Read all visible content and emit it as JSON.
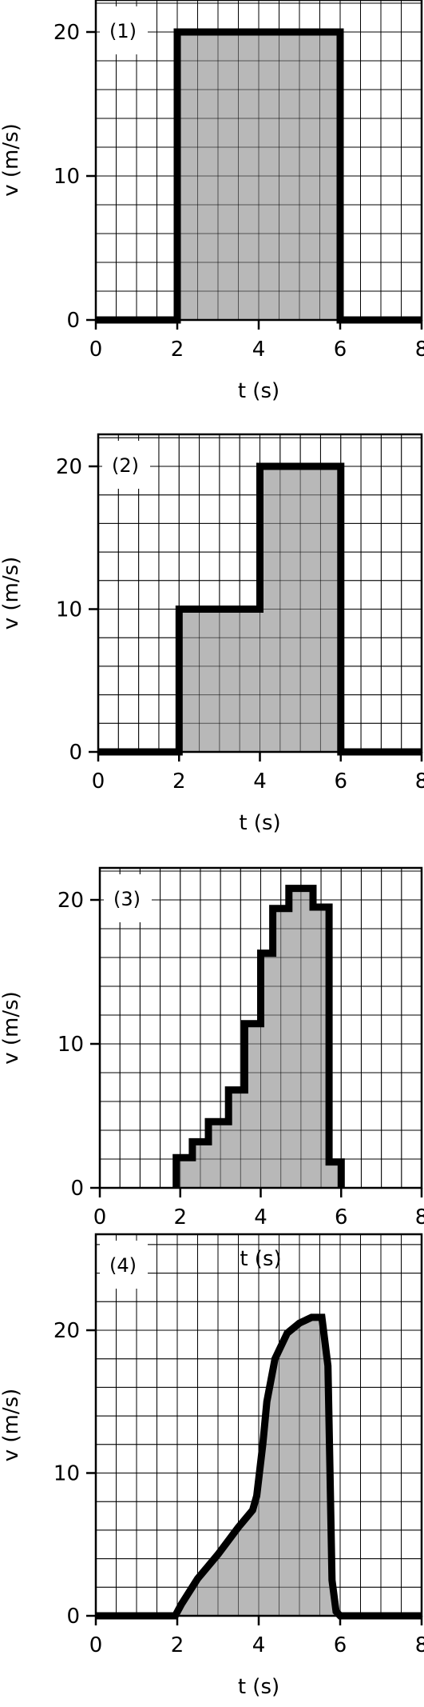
{
  "colors": {
    "fill": "#b8b8b8",
    "curve": "#000000",
    "grid": "#000000",
    "background": "#ffffff"
  },
  "chart_data": [
    {
      "type": "area",
      "panel_label": "(1)",
      "xlabel": "t (s)",
      "ylabel": "v (m/s)",
      "xlim": [
        0,
        8
      ],
      "ylim": [
        0,
        20
      ],
      "xticks": [
        0,
        2,
        4,
        6,
        8
      ],
      "yticks": [
        0,
        10,
        20
      ],
      "grid": true,
      "x": [
        0,
        2,
        2,
        6,
        6,
        8
      ],
      "y": [
        0,
        0,
        20,
        20,
        0,
        0
      ]
    },
    {
      "type": "area",
      "panel_label": "(2)",
      "xlabel": "t (s)",
      "ylabel": "v (m/s)",
      "xlim": [
        0,
        8
      ],
      "ylim": [
        0,
        20
      ],
      "xticks": [
        0,
        2,
        4,
        6,
        8
      ],
      "yticks": [
        0,
        10,
        20
      ],
      "grid": true,
      "x": [
        0,
        2,
        2,
        4,
        4,
        6,
        6,
        8
      ],
      "y": [
        0,
        0,
        10,
        10,
        20,
        20,
        0,
        0
      ]
    },
    {
      "type": "area",
      "panel_label": "(3)",
      "xlabel": "t (s)",
      "ylabel": "v (m/s)",
      "xlim": [
        0,
        8
      ],
      "ylim": [
        0,
        20
      ],
      "xticks": [
        0,
        2,
        4,
        6,
        8
      ],
      "yticks": [
        0,
        10,
        20
      ],
      "grid": true,
      "x": [
        1.9,
        1.9,
        2.3,
        2.3,
        2.7,
        2.7,
        3.2,
        3.2,
        3.6,
        3.6,
        4.0,
        4.0,
        4.3,
        4.3,
        4.7,
        4.7,
        5.3,
        5.3,
        5.7,
        5.7,
        6.0,
        6.0
      ],
      "y": [
        0,
        2.1,
        2.1,
        3.2,
        3.2,
        4.6,
        4.6,
        6.8,
        6.8,
        11.4,
        11.4,
        16.3,
        16.3,
        19.4,
        19.4,
        20.8,
        20.8,
        19.5,
        19.5,
        1.8,
        1.8,
        0
      ]
    },
    {
      "type": "area",
      "panel_label": "(4)",
      "xlabel": "t (s)",
      "ylabel": "v (m/s)",
      "xlim": [
        0,
        8
      ],
      "ylim": [
        0,
        20
      ],
      "xticks": [
        0,
        2,
        4,
        6,
        8
      ],
      "yticks": [
        0,
        10,
        20
      ],
      "grid": true,
      "x": [
        0,
        1.95,
        2.1,
        2.5,
        3.0,
        3.5,
        3.85,
        3.95,
        4.1,
        4.2,
        4.4,
        4.7,
        5.0,
        5.3,
        5.55,
        5.7,
        5.75,
        5.8,
        5.9,
        6.0,
        8.0
      ],
      "y": [
        0,
        0,
        0.8,
        2.6,
        4.3,
        6.2,
        7.4,
        8.4,
        12.0,
        15.0,
        18.0,
        19.8,
        20.5,
        20.9,
        20.9,
        17.5,
        10.0,
        2.5,
        0.3,
        0,
        0
      ]
    }
  ]
}
